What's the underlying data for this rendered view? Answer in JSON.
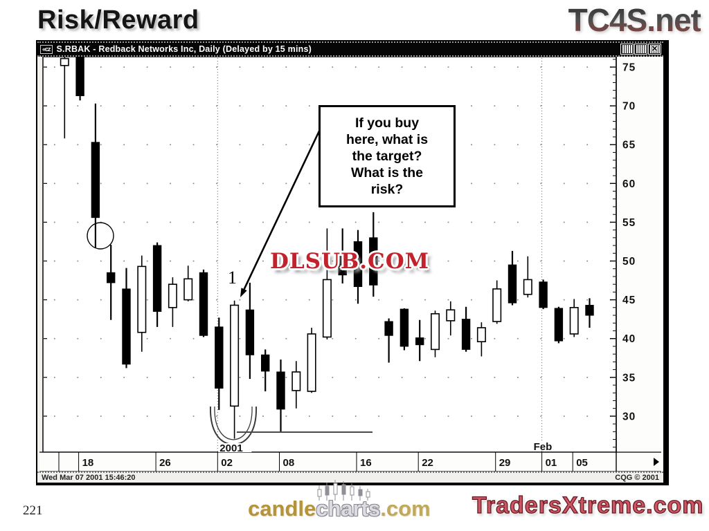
{
  "slide": {
    "title": "Risk/Reward",
    "page_number": "221"
  },
  "logos": {
    "top_right": "TC4S.net",
    "bottom_right": "TradersXtreme.com",
    "candlecharts": {
      "part1": "candle",
      "part2": "charts",
      "part3": ".com"
    },
    "watermark": "DLSUB.COM"
  },
  "window": {
    "title": "S.RBAK - Redback Networks Inc, Daily (Delayed by 15 mins)",
    "status_left": "Wed Mar 07 2001 15:46:20",
    "status_right": "CQG © 2001",
    "icons": {
      "app": "«cz",
      "minimize": "stripes",
      "maximize": "stripes",
      "close": "✕",
      "scroll_right": "▶"
    }
  },
  "annotations": {
    "callout": "If you buy\nhere, what is\nthe target?\nWhat is the\nrisk?",
    "candle_label": "1"
  },
  "chart_data": {
    "type": "candlestick",
    "symbol": "S.RBAK",
    "company": "Redback Networks Inc",
    "interval": "Daily",
    "y_ticks": [
      75,
      70,
      65,
      60,
      55,
      50,
      45,
      40,
      35,
      30
    ],
    "ylim": [
      25.5,
      76.5
    ],
    "grid": "dotted",
    "x_ticks": [
      {
        "label": "18",
        "index": 1
      },
      {
        "label": "26",
        "index": 6
      },
      {
        "label": "02",
        "index": 10
      },
      {
        "label": "08",
        "index": 14
      },
      {
        "label": "16",
        "index": 19
      },
      {
        "label": "22",
        "index": 23
      },
      {
        "label": "29",
        "index": 28
      },
      {
        "label": "01",
        "index": 31
      },
      {
        "label": "05",
        "index": 33
      }
    ],
    "month_separators": [
      {
        "index": 10,
        "label": "2001",
        "label_position": "below"
      },
      {
        "index": 31,
        "label": "Feb",
        "label_position": "above"
      }
    ],
    "candles_ohlc": [
      [
        75.2,
        76.3,
        65.8,
        76.1
      ],
      [
        76.4,
        76.5,
        70.7,
        71.3
      ],
      [
        65.3,
        70.3,
        51.7,
        55.6
      ],
      [
        48.5,
        52.1,
        42.4,
        47.2
      ],
      [
        46.4,
        49.1,
        36.2,
        36.7
      ],
      [
        40.8,
        50.7,
        38.3,
        49.3
      ],
      [
        52.0,
        52.4,
        41.5,
        43.5
      ],
      [
        44.0,
        47.9,
        41.5,
        47.0
      ],
      [
        45.0,
        49.4,
        44.8,
        47.7
      ],
      [
        48.5,
        48.9,
        40.2,
        40.4
      ],
      [
        41.5,
        42.7,
        30.8,
        33.6
      ],
      [
        31.3,
        44.9,
        27.1,
        44.3
      ],
      [
        43.7,
        47.2,
        34.8,
        37.9
      ],
      [
        37.9,
        38.6,
        33.2,
        35.8
      ],
      [
        35.7,
        37.3,
        27.9,
        30.9
      ],
      [
        33.3,
        37.1,
        31.0,
        35.7
      ],
      [
        33.2,
        41.4,
        33.0,
        40.6
      ],
      [
        40.2,
        54.2,
        39.9,
        47.6
      ],
      [
        50.6,
        54.2,
        47.1,
        48.2
      ],
      [
        52.5,
        54.0,
        44.5,
        46.7
      ],
      [
        53.0,
        56.3,
        45.4,
        46.9
      ],
      [
        42.2,
        42.6,
        36.9,
        40.4
      ],
      [
        43.8,
        43.9,
        38.5,
        39.0
      ],
      [
        40.1,
        42.4,
        37.1,
        39.2
      ],
      [
        38.6,
        43.6,
        37.6,
        43.2
      ],
      [
        42.3,
        44.8,
        40.4,
        43.7
      ],
      [
        42.5,
        44.1,
        38.3,
        38.6
      ],
      [
        39.6,
        42.1,
        37.7,
        41.4
      ],
      [
        42.2,
        47.5,
        41.9,
        46.4
      ],
      [
        49.5,
        51.3,
        44.3,
        44.6
      ],
      [
        45.7,
        50.6,
        45.3,
        47.6
      ],
      [
        47.3,
        47.6,
        43.8,
        44.0
      ],
      [
        43.9,
        44.1,
        39.4,
        39.7
      ],
      [
        40.6,
        45.1,
        40.2,
        44.0
      ],
      [
        44.3,
        45.2,
        41.4,
        43.0
      ]
    ]
  }
}
